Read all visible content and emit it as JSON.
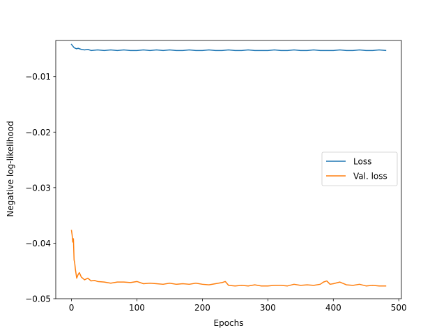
{
  "chart_data": {
    "type": "line",
    "title": "",
    "xlabel": "Epochs",
    "ylabel": "Negative log-likelihood",
    "xlim": [
      -24,
      504
    ],
    "ylim": [
      -0.05,
      -0.0035
    ],
    "xticks": [
      0,
      100,
      200,
      300,
      400,
      500
    ],
    "xtick_labels": [
      "0",
      "100",
      "200",
      "300",
      "400",
      "500"
    ],
    "yticks": [
      -0.01,
      -0.02,
      -0.03,
      -0.04,
      -0.05
    ],
    "ytick_labels": [
      "−0.01",
      "−0.02",
      "−0.03",
      "−0.04",
      "−0.05"
    ],
    "grid": false,
    "legend": {
      "position": "center-right"
    },
    "series": [
      {
        "name": "Loss",
        "color": "#1f77b4",
        "x": [
          0,
          2,
          4,
          6,
          8,
          10,
          15,
          20,
          25,
          30,
          40,
          50,
          60,
          70,
          80,
          90,
          100,
          110,
          120,
          130,
          140,
          150,
          160,
          170,
          180,
          190,
          200,
          210,
          220,
          230,
          240,
          250,
          260,
          270,
          280,
          290,
          300,
          310,
          320,
          330,
          340,
          350,
          360,
          370,
          380,
          390,
          400,
          410,
          420,
          430,
          440,
          450,
          460,
          470,
          480
        ],
        "y": [
          -0.0042,
          -0.0045,
          -0.0048,
          -0.0049,
          -0.005,
          -0.0049,
          -0.0051,
          -0.0052,
          -0.0051,
          -0.0053,
          -0.0052,
          -0.0053,
          -0.0052,
          -0.0053,
          -0.0052,
          -0.0053,
          -0.0053,
          -0.0052,
          -0.0053,
          -0.0052,
          -0.0053,
          -0.0052,
          -0.0053,
          -0.0053,
          -0.0052,
          -0.0053,
          -0.0053,
          -0.0052,
          -0.0053,
          -0.0053,
          -0.0052,
          -0.0053,
          -0.0053,
          -0.0052,
          -0.0053,
          -0.0053,
          -0.0053,
          -0.0052,
          -0.0053,
          -0.0053,
          -0.0052,
          -0.0053,
          -0.0053,
          -0.0052,
          -0.0053,
          -0.0053,
          -0.0053,
          -0.0052,
          -0.0053,
          -0.0053,
          -0.0052,
          -0.0053,
          -0.0053,
          -0.0052,
          -0.0053
        ]
      },
      {
        "name": "Val. loss",
        "color": "#ff7f0e",
        "x": [
          0,
          1,
          2,
          3,
          4,
          5,
          6,
          8,
          10,
          12,
          15,
          20,
          25,
          30,
          35,
          40,
          50,
          60,
          70,
          80,
          90,
          100,
          110,
          120,
          130,
          140,
          150,
          160,
          170,
          180,
          190,
          200,
          210,
          220,
          230,
          235,
          240,
          250,
          260,
          270,
          280,
          290,
          300,
          310,
          320,
          330,
          340,
          350,
          360,
          370,
          380,
          385,
          390,
          395,
          400,
          410,
          420,
          430,
          440,
          450,
          460,
          470,
          480
        ],
        "y": [
          -0.0377,
          -0.0385,
          -0.0398,
          -0.0392,
          -0.043,
          -0.0436,
          -0.0447,
          -0.0463,
          -0.0457,
          -0.0453,
          -0.0461,
          -0.0466,
          -0.0463,
          -0.0468,
          -0.0467,
          -0.0469,
          -0.047,
          -0.0472,
          -0.047,
          -0.047,
          -0.0471,
          -0.0469,
          -0.0473,
          -0.0472,
          -0.0473,
          -0.0474,
          -0.0472,
          -0.0474,
          -0.0473,
          -0.0474,
          -0.0472,
          -0.0474,
          -0.0475,
          -0.0473,
          -0.0471,
          -0.0469,
          -0.0476,
          -0.0477,
          -0.0476,
          -0.0477,
          -0.0475,
          -0.0477,
          -0.0477,
          -0.0476,
          -0.0476,
          -0.0477,
          -0.0474,
          -0.0476,
          -0.0475,
          -0.0476,
          -0.0474,
          -0.047,
          -0.0468,
          -0.0474,
          -0.0473,
          -0.047,
          -0.0475,
          -0.0476,
          -0.0474,
          -0.0477,
          -0.0476,
          -0.0477,
          -0.0477
        ]
      }
    ]
  }
}
